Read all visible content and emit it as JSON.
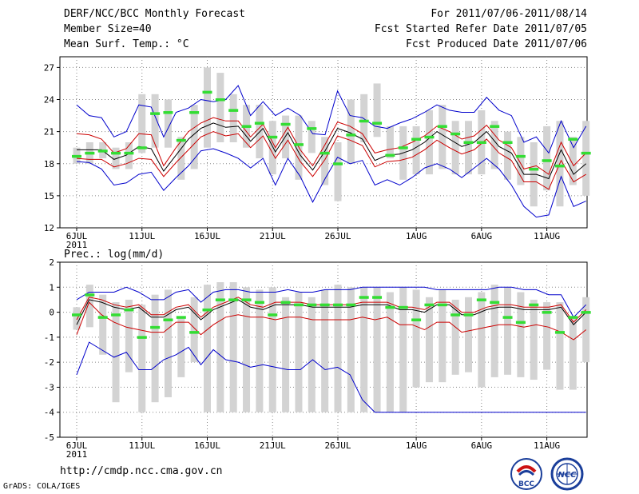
{
  "header": {
    "left": [
      "DERF/NCC/BCC Monthly Forecast",
      "Member Size=40",
      "Mean Surf. Temp.: °C"
    ],
    "right": [
      "For 2011/07/06-2011/08/14",
      "Fcst Started Refer Date 2011/07/05",
      "Fcst Produced Date 2011/07/06"
    ]
  },
  "footer": {
    "url": "http://cmdp.ncc.cma.gov.cn",
    "credit": "GrADS: COLA/IGES"
  },
  "logos": {
    "bcc": "BCC",
    "ncc": "NCC"
  },
  "colors": {
    "box": "#d3d3d3",
    "mean": "#000000",
    "std": "#cc0000",
    "minmax": "#0000cc",
    "green": "#33dd33",
    "grid": "#888888"
  },
  "chart_data": [
    {
      "type": "box-line",
      "title": "Mean Surf. Temp.: °C",
      "ylim": [
        12,
        28
      ],
      "yticks": [
        12,
        15,
        18,
        21,
        24,
        27
      ],
      "xticks": [
        {
          "day": 0,
          "label": "6JUL",
          "sub": "2011"
        },
        {
          "day": 5,
          "label": "11JUL"
        },
        {
          "day": 10,
          "label": "16JUL"
        },
        {
          "day": 15,
          "label": "21JUL"
        },
        {
          "day": 20,
          "label": "26JUL"
        },
        {
          "day": 26,
          "label": "1AUG"
        },
        {
          "day": 31,
          "label": "6AUG"
        },
        {
          "day": 36,
          "label": "11AUG"
        }
      ],
      "box_low": [
        18.0,
        18.0,
        18.5,
        17.5,
        17.5,
        19.0,
        19.5,
        19.5,
        16.5,
        17.5,
        19.5,
        20.0,
        20.0,
        19.5,
        18.5,
        17.0,
        18.5,
        16.5,
        19.0,
        16.0,
        14.5,
        18.0,
        20.0,
        20.5,
        18.5,
        16.5,
        17.0,
        17.0,
        17.5,
        17.0,
        17.0,
        17.0,
        17.5,
        16.5,
        16.0,
        14.0,
        15.5,
        14.0,
        16.0,
        15.0
      ],
      "box_high": [
        19.5,
        20.0,
        20.0,
        19.5,
        20.0,
        24.5,
        24.5,
        24.0,
        20.5,
        23.5,
        27.0,
        26.5,
        24.5,
        23.5,
        23.5,
        22.0,
        22.5,
        22.5,
        22.0,
        20.5,
        20.0,
        24.0,
        24.5,
        25.5,
        21.5,
        21.5,
        21.5,
        23.0,
        23.5,
        22.0,
        22.0,
        23.0,
        22.0,
        21.0,
        20.5,
        20.0,
        21.5,
        22.0,
        20.5,
        22.0
      ],
      "green": [
        18.7,
        19.0,
        19.2,
        19.0,
        19.0,
        19.5,
        22.7,
        22.8,
        20.2,
        22.8,
        24.7,
        24.0,
        23.0,
        21.5,
        21.8,
        20.5,
        21.7,
        19.8,
        21.3,
        19.0,
        18.0,
        20.7,
        22.0,
        21.8,
        18.8,
        19.5,
        20.3,
        20.5,
        21.5,
        20.8,
        20.0,
        20.0,
        21.5,
        20.0,
        18.7,
        17.5,
        18.3,
        17.8,
        20.3,
        19.0
      ],
      "series": [
        {
          "name": "mean",
          "values": [
            19.3,
            19.3,
            19.3,
            18.4,
            18.8,
            19.6,
            19.4,
            17.3,
            18.8,
            20.3,
            21.3,
            21.8,
            21.4,
            21.5,
            20.1,
            21.3,
            19.1,
            20.9,
            18.8,
            17.4,
            19.2,
            21.3,
            20.9,
            20.3,
            18.3,
            18.8,
            18.9,
            19.3,
            20.0,
            21.0,
            20.3,
            19.6,
            20.0,
            21.0,
            19.6,
            19.0,
            17.0,
            17.0,
            16.6,
            19.3,
            17.0,
            18.0
          ]
        },
        {
          "name": "upper-std",
          "values": [
            20.8,
            20.7,
            20.3,
            19.0,
            19.4,
            20.8,
            20.7,
            17.8,
            19.5,
            21.0,
            21.8,
            22.3,
            22.0,
            22.0,
            20.5,
            21.7,
            19.5,
            21.4,
            19.3,
            17.8,
            19.8,
            21.9,
            21.5,
            20.8,
            19.0,
            19.3,
            19.5,
            20.0,
            20.6,
            21.5,
            21.0,
            20.3,
            20.6,
            21.6,
            20.2,
            19.5,
            17.5,
            17.8,
            17.0,
            20.0,
            17.8,
            19.0
          ]
        },
        {
          "name": "lower-std",
          "values": [
            18.5,
            18.4,
            18.4,
            17.7,
            18.0,
            18.5,
            18.4,
            16.8,
            18.1,
            19.3,
            20.5,
            21.0,
            20.6,
            20.8,
            19.5,
            20.6,
            18.5,
            20.2,
            18.2,
            16.8,
            18.4,
            20.6,
            20.2,
            19.7,
            17.7,
            18.2,
            18.3,
            18.6,
            19.3,
            20.2,
            19.5,
            18.9,
            19.3,
            20.3,
            19.0,
            18.3,
            16.3,
            16.3,
            15.6,
            18.3,
            16.3,
            17.0
          ]
        },
        {
          "name": "max",
          "values": [
            23.5,
            22.5,
            22.3,
            20.5,
            21.0,
            23.5,
            23.3,
            20.5,
            22.8,
            23.2,
            24.0,
            23.8,
            24.0,
            25.3,
            22.5,
            23.8,
            22.5,
            23.2,
            22.5,
            20.8,
            20.7,
            24.8,
            22.5,
            22.3,
            21.5,
            21.3,
            21.8,
            22.2,
            22.8,
            23.5,
            23.0,
            22.8,
            22.8,
            24.2,
            23.0,
            22.5,
            20.0,
            20.5,
            19.0,
            22.0,
            19.5,
            21.5
          ]
        },
        {
          "name": "min",
          "values": [
            18.2,
            18.1,
            17.5,
            16.0,
            16.2,
            17.0,
            17.2,
            15.5,
            16.7,
            17.8,
            19.2,
            19.4,
            19.0,
            18.5,
            17.6,
            18.5,
            16.0,
            18.5,
            16.8,
            14.4,
            16.6,
            18.6,
            18.0,
            18.3,
            16.0,
            16.5,
            16.0,
            16.7,
            17.6,
            18.0,
            17.5,
            16.7,
            17.6,
            18.5,
            17.5,
            16.0,
            14.0,
            13.0,
            13.2,
            16.8,
            14.0,
            14.5
          ]
        }
      ]
    },
    {
      "type": "box-line",
      "title": "Prec.: log(mm/d)",
      "ylim": [
        -5,
        2
      ],
      "yticks": [
        -5,
        -4,
        -3,
        -2,
        -1,
        0,
        1,
        2
      ],
      "xticks": [
        {
          "day": 0,
          "label": "6JUL",
          "sub": "2011"
        },
        {
          "day": 5,
          "label": "11JUL"
        },
        {
          "day": 10,
          "label": "16JUL"
        },
        {
          "day": 15,
          "label": "21JUL"
        },
        {
          "day": 20,
          "label": "26JUL"
        },
        {
          "day": 26,
          "label": "1AUG"
        },
        {
          "day": 31,
          "label": "6AUG"
        },
        {
          "day": 36,
          "label": "11AUG"
        }
      ],
      "box_low": [
        -0.7,
        -0.6,
        -1.7,
        -3.6,
        -2.4,
        -4.0,
        -3.6,
        -3.4,
        -2.6,
        -2.0,
        -4.0,
        -4.0,
        -4.0,
        -4.0,
        -4.0,
        -4.0,
        -4.0,
        -4.0,
        -4.0,
        -4.0,
        -4.0,
        -4.0,
        -4.0,
        -4.0,
        -4.0,
        -4.0,
        -3.0,
        -2.8,
        -2.8,
        -2.5,
        -2.4,
        -3.0,
        -2.6,
        -2.5,
        -2.6,
        -2.7,
        -2.3,
        -3.1,
        -3.1,
        -2.0
      ],
      "box_high": [
        0.2,
        1.1,
        0.7,
        0.4,
        0.5,
        0.3,
        0.7,
        0.9,
        -0.2,
        0.6,
        1.1,
        1.2,
        1.2,
        1.0,
        0.9,
        1.0,
        0.6,
        0.8,
        0.6,
        0.9,
        1.1,
        1.0,
        1.0,
        1.0,
        0.8,
        1.0,
        0.9,
        0.6,
        0.9,
        0.5,
        0.6,
        0.8,
        1.1,
        1.0,
        0.8,
        0.5,
        0.4,
        0.4,
        -0.2,
        0.6
      ],
      "green": [
        -0.1,
        0.7,
        -0.2,
        -0.1,
        0.1,
        -1.0,
        -0.6,
        -0.3,
        -0.2,
        -0.8,
        0.1,
        0.5,
        0.5,
        0.5,
        0.4,
        -0.1,
        0.4,
        0.3,
        0.3,
        0.3,
        0.3,
        0.3,
        0.6,
        0.6,
        0.2,
        0.2,
        -0.3,
        0.3,
        0.3,
        -0.1,
        -0.1,
        0.5,
        0.4,
        -0.2,
        -0.4,
        0.3,
        0.0,
        -0.8,
        -0.2,
        0.0
      ],
      "series": [
        {
          "name": "mean",
          "values": [
            -0.5,
            0.5,
            0.4,
            0.2,
            0.1,
            0.2,
            -0.2,
            -0.2,
            0.1,
            0.2,
            -0.3,
            0.1,
            0.3,
            0.5,
            0.2,
            0.1,
            0.3,
            0.3,
            0.3,
            0.2,
            0.2,
            0.2,
            0.2,
            0.3,
            0.3,
            0.3,
            0.1,
            0.1,
            0.0,
            0.3,
            0.3,
            -0.1,
            -0.1,
            0.1,
            0.2,
            0.2,
            0.1,
            0.1,
            0.1,
            0.2,
            -0.5,
            0.0
          ]
        },
        {
          "name": "upper-std",
          "values": [
            -0.3,
            0.6,
            0.5,
            0.3,
            0.2,
            0.3,
            -0.1,
            -0.1,
            0.2,
            0.3,
            -0.2,
            0.2,
            0.4,
            0.6,
            0.3,
            0.2,
            0.4,
            0.4,
            0.4,
            0.3,
            0.3,
            0.3,
            0.3,
            0.4,
            0.4,
            0.4,
            0.2,
            0.2,
            0.1,
            0.4,
            0.4,
            0.0,
            0.0,
            0.2,
            0.3,
            0.3,
            0.2,
            0.2,
            0.2,
            0.3,
            -0.4,
            0.1
          ]
        },
        {
          "name": "lower-std",
          "values": [
            -0.9,
            0.4,
            -0.1,
            -0.4,
            -0.6,
            -0.7,
            -0.8,
            -0.8,
            -0.4,
            -0.4,
            -0.9,
            -0.5,
            -0.2,
            -0.1,
            -0.2,
            -0.2,
            -0.3,
            -0.2,
            -0.2,
            -0.3,
            -0.3,
            -0.3,
            -0.3,
            -0.2,
            -0.3,
            -0.2,
            -0.5,
            -0.5,
            -0.7,
            -0.4,
            -0.4,
            -0.8,
            -0.7,
            -0.6,
            -0.5,
            -0.5,
            -0.6,
            -0.5,
            -0.6,
            -0.8,
            -1.1,
            -0.7
          ]
        },
        {
          "name": "max",
          "values": [
            0.5,
            0.8,
            0.8,
            0.8,
            1.0,
            0.8,
            0.5,
            0.5,
            0.8,
            0.9,
            0.4,
            0.8,
            0.9,
            0.9,
            0.8,
            0.8,
            0.8,
            0.9,
            0.8,
            0.8,
            0.9,
            0.9,
            0.9,
            1.0,
            1.0,
            1.0,
            1.0,
            1.0,
            1.0,
            0.9,
            0.9,
            0.9,
            0.9,
            0.9,
            1.0,
            1.0,
            0.9,
            0.9,
            0.7,
            0.7,
            -0.2,
            0.3
          ]
        },
        {
          "name": "min",
          "values": [
            -2.5,
            -1.2,
            -1.5,
            -1.8,
            -1.6,
            -2.3,
            -2.3,
            -1.9,
            -1.7,
            -1.4,
            -2.1,
            -1.5,
            -1.9,
            -2.0,
            -2.2,
            -2.1,
            -2.2,
            -2.3,
            -2.3,
            -1.9,
            -2.3,
            -2.2,
            -2.5,
            -3.5,
            -4.0,
            -4.0,
            -4.0,
            -4.0,
            -4.0,
            -4.0,
            -4.0,
            -4.0,
            -4.0,
            -4.0,
            -4.0,
            -4.0,
            -4.0,
            -4.0,
            -4.0,
            -4.0,
            -4.0,
            -4.0
          ]
        }
      ]
    }
  ]
}
